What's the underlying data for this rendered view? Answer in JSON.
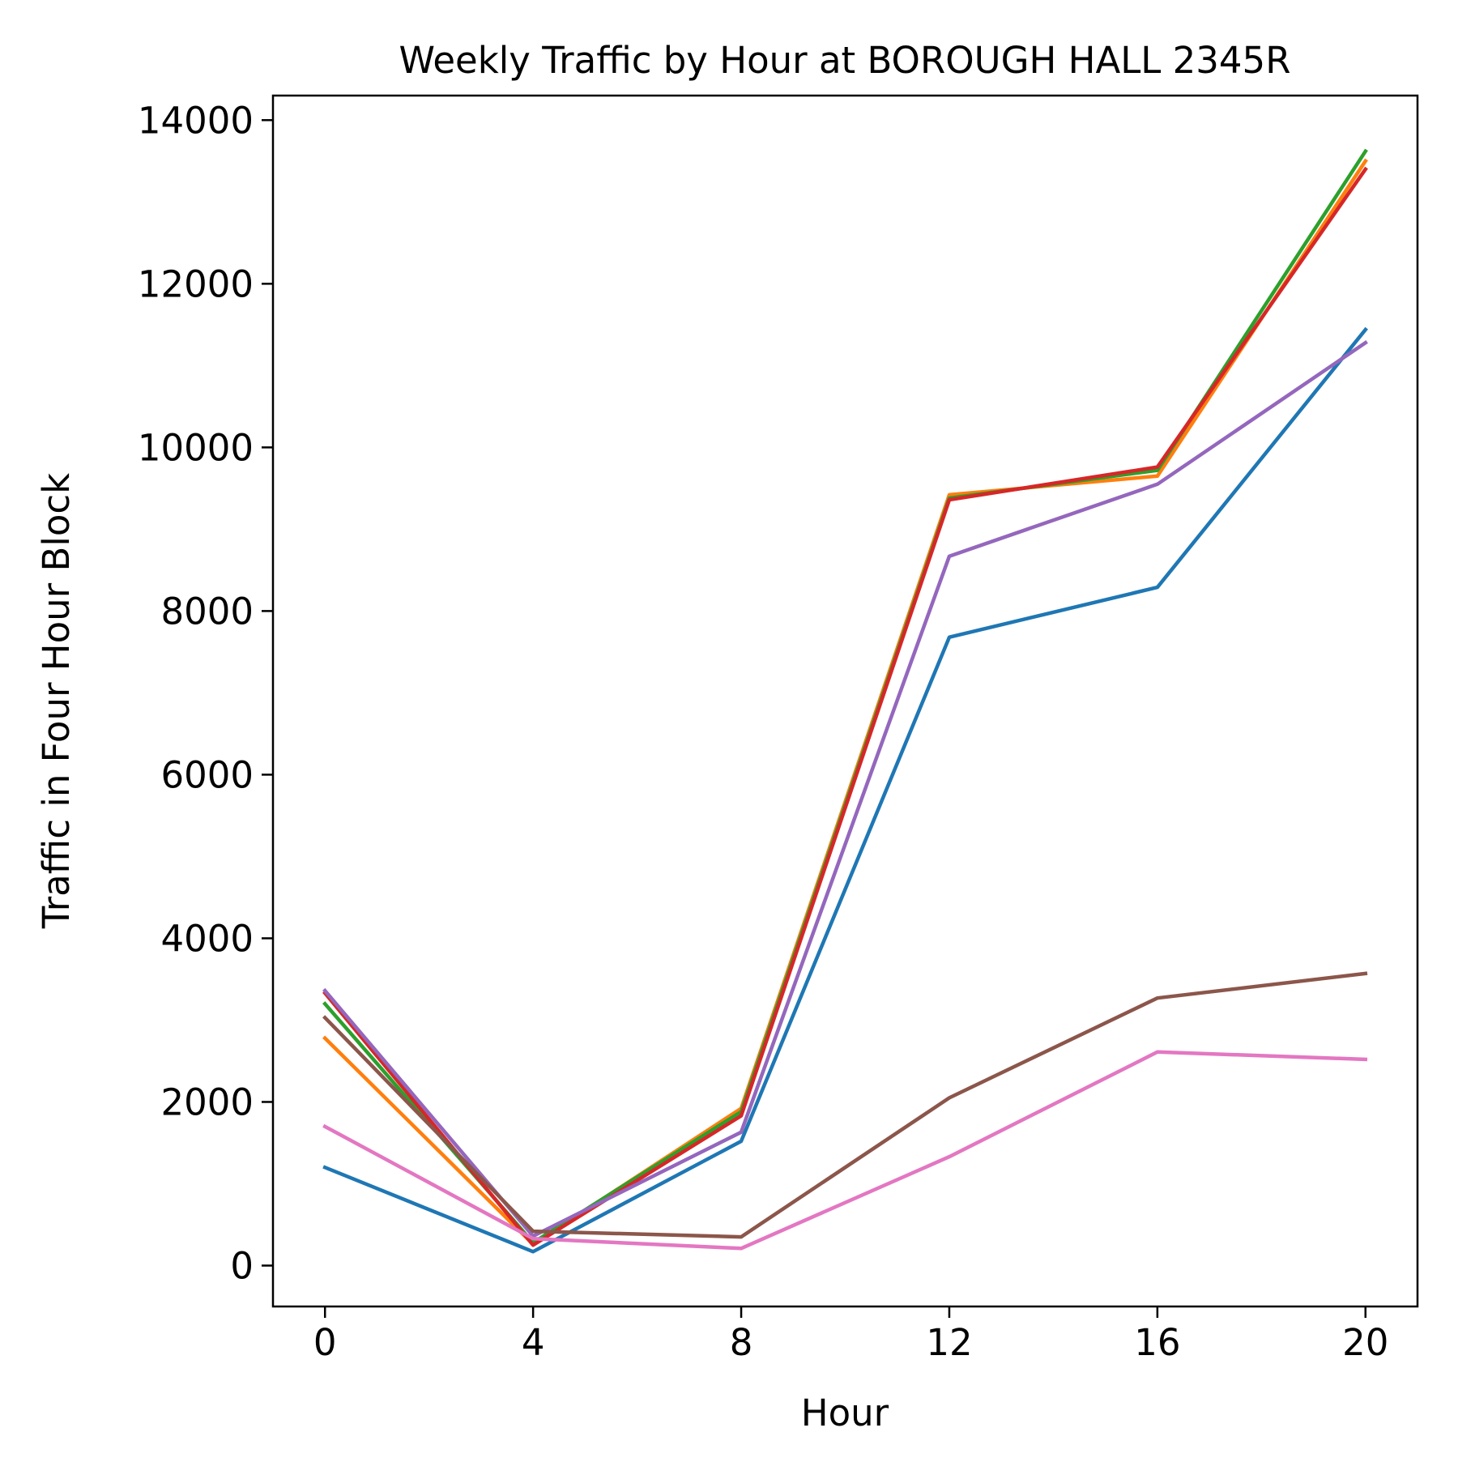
{
  "chart_data": {
    "type": "line",
    "title": "Weekly Traffic by Hour at BOROUGH HALL 2345R",
    "xlabel": "Hour",
    "ylabel": "Traffic in Four Hour Block",
    "x": [
      0,
      4,
      8,
      12,
      16,
      20
    ],
    "x_ticks": [
      "0",
      "4",
      "8",
      "12",
      "16",
      "20"
    ],
    "y_ticks": [
      "0",
      "2000",
      "4000",
      "6000",
      "8000",
      "10000",
      "12000",
      "14000"
    ],
    "xlim": [
      -1,
      21
    ],
    "ylim": [
      -500,
      14300
    ],
    "grid": false,
    "legend": "none",
    "series": [
      {
        "color": "#1f77b4",
        "values": [
          1200,
          170,
          1520,
          7680,
          8290,
          11440
        ]
      },
      {
        "color": "#ff7f0e",
        "values": [
          2780,
          260,
          1920,
          9420,
          9650,
          13500
        ]
      },
      {
        "color": "#2ca02c",
        "values": [
          3200,
          280,
          1880,
          9380,
          9720,
          13620
        ]
      },
      {
        "color": "#d62728",
        "values": [
          3330,
          250,
          1830,
          9360,
          9760,
          13400
        ]
      },
      {
        "color": "#9467bd",
        "values": [
          3360,
          360,
          1630,
          8670,
          9550,
          11280
        ]
      },
      {
        "color": "#8c564b",
        "values": [
          3030,
          420,
          350,
          2050,
          3270,
          3570
        ]
      },
      {
        "color": "#e377c2",
        "values": [
          1700,
          330,
          210,
          1330,
          2610,
          2520
        ]
      }
    ]
  }
}
